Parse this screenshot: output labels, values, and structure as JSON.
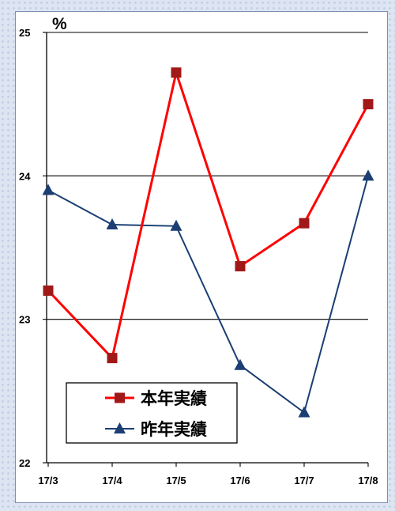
{
  "chart_data": {
    "type": "line",
    "title": "",
    "xlabel": "",
    "ylabel": "%",
    "categories": [
      "17/3",
      "17/4",
      "17/5",
      "17/6",
      "17/7",
      "17/8"
    ],
    "ylim": [
      22,
      25
    ],
    "yticks": [
      "22",
      "23",
      "24",
      "25"
    ],
    "grid": true,
    "legend_position": "bottom-left",
    "series": [
      {
        "name": "本年実績",
        "color": "#ff0000",
        "marker": "square",
        "marker_color": "#a01818",
        "values": [
          23.2,
          22.73,
          24.72,
          23.37,
          23.67,
          24.5
        ]
      },
      {
        "name": "昨年実績",
        "color": "#1b3f73",
        "marker": "triangle",
        "marker_color": "#1b3f73",
        "values": [
          23.9,
          23.66,
          23.65,
          22.68,
          22.35,
          24.0
        ]
      }
    ]
  }
}
